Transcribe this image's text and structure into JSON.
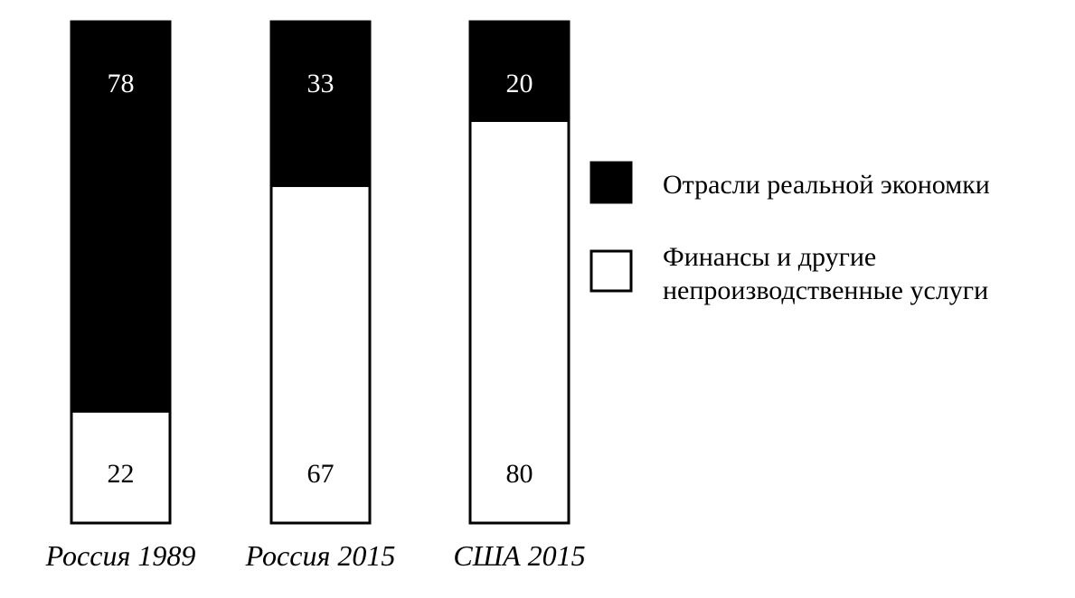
{
  "chart_data": {
    "type": "bar",
    "stacked": true,
    "normalized_percent": true,
    "categories": [
      "Россия 1989",
      "Россия 2015",
      "США 2015"
    ],
    "series": [
      {
        "name": "Отрасли реальной экономки",
        "values": [
          78,
          33,
          20
        ],
        "color": "#000000",
        "position": "top"
      },
      {
        "name": "Финансы и другие непроизводственные услуги",
        "values": [
          22,
          67,
          80
        ],
        "color": "#ffffff",
        "position": "bottom"
      }
    ],
    "legend": {
      "placement": "right",
      "items": [
        {
          "lines": [
            "Отрасли реальной экономки"
          ],
          "swatch": "#000000"
        },
        {
          "lines": [
            "Финансы и другие",
            "непроизводственные услуги"
          ],
          "swatch": "#ffffff"
        }
      ]
    },
    "ylim": [
      0,
      100
    ],
    "grid": false
  }
}
